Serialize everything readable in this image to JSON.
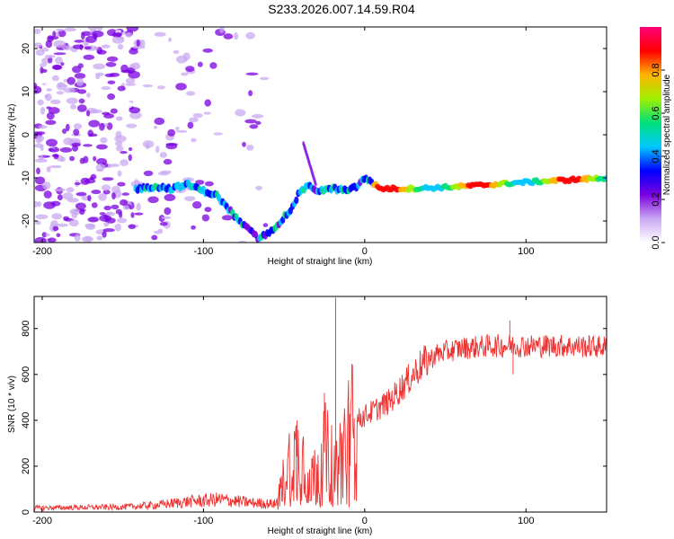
{
  "figure": {
    "title": "S233.2026.007.14.59.R04"
  },
  "chart_data": [
    {
      "id": "spectrogram",
      "type": "heatmap",
      "title": "S233.2026.007.14.59.R04",
      "xlabel": "Height of straight line (km)",
      "ylabel": "Frequency (Hz)",
      "xlim": [
        -205,
        150
      ],
      "ylim": [
        -25,
        25
      ],
      "xticks": [
        -200,
        -100,
        0,
        100
      ],
      "yticks": [
        20,
        10,
        0,
        -10,
        -20
      ],
      "ridge": {
        "description_points": [
          [
            -140,
            -12.5
          ],
          [
            -130,
            -12
          ],
          [
            -120,
            -12.5
          ],
          [
            -110,
            -11.5
          ],
          [
            -100,
            -13
          ],
          [
            -92,
            -14
          ],
          [
            -85,
            -17
          ],
          [
            -78,
            -20
          ],
          [
            -72,
            -22
          ],
          [
            -66,
            -24
          ],
          [
            -60,
            -23
          ],
          [
            -52,
            -20
          ],
          [
            -45,
            -17
          ],
          [
            -40,
            -13
          ],
          [
            -35,
            -12
          ],
          [
            -28,
            -13
          ],
          [
            -20,
            -12.5
          ],
          [
            -10,
            -13
          ],
          [
            -5,
            -12
          ],
          [
            0,
            -10
          ],
          [
            10,
            -12.5
          ],
          [
            30,
            -12.5
          ],
          [
            60,
            -12
          ],
          [
            100,
            -11
          ],
          [
            150,
            -10
          ]
        ]
      },
      "colorbar": {
        "label": "Normalized spectral amplitude",
        "range": [
          0,
          1
        ],
        "ticks": [
          "0.0",
          "0.2",
          "0.4",
          "0.6",
          "0.8"
        ],
        "colors": [
          "#ffffff",
          "#c9a8f2",
          "#7a00e0",
          "#0000ff",
          "#00c8ff",
          "#00e07a",
          "#a0f000",
          "#ffb400",
          "#ff0000",
          "#ff0078"
        ]
      }
    },
    {
      "id": "snr",
      "type": "line",
      "xlabel": "Height of straight line (km)",
      "ylabel": "SNR (10 * v/v)",
      "xlim": [
        -205,
        150
      ],
      "ylim": [
        0,
        940
      ],
      "xticks": [
        -200,
        -100,
        0,
        100
      ],
      "yticks": [
        0,
        200,
        400,
        600,
        800
      ],
      "series": [
        {
          "name": "SNR",
          "color": "#ee3333",
          "envelope_x": [
            -205,
            -150,
            -130,
            -110,
            -90,
            -70,
            -55,
            -45,
            -38,
            -32,
            -25,
            -18,
            -12,
            -5,
            5,
            15,
            25,
            35,
            45,
            60,
            80,
            100,
            120,
            150
          ],
          "envelope_y": [
            18,
            22,
            30,
            45,
            55,
            40,
            35,
            250,
            230,
            140,
            260,
            180,
            300,
            400,
            440,
            480,
            560,
            640,
            690,
            715,
            725,
            725,
            725,
            720
          ],
          "spikes": [
            [
              -18,
              935
            ],
            [
              -25,
              520
            ],
            [
              -42,
              400
            ],
            [
              90,
              835
            ],
            [
              92,
              600
            ]
          ]
        }
      ]
    }
  ]
}
